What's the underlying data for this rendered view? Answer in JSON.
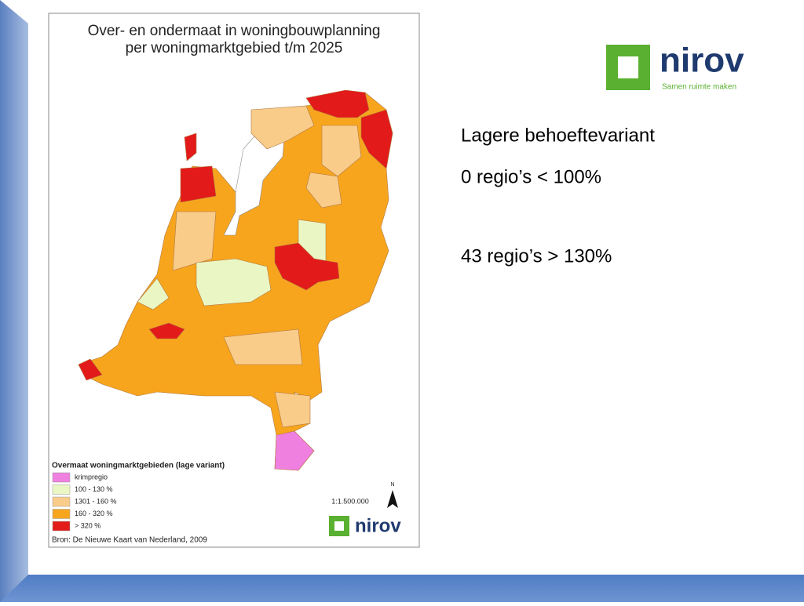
{
  "map": {
    "title": [
      "Over- en ondermaat in woningbouwplanning",
      "per woningmarktgebied t/m 2025"
    ],
    "legend": {
      "title": "Overmaat woningmarktgebieden (lage variant)",
      "items": [
        "krimpregio",
        "100 - 130 %",
        "1301 - 160 %",
        "160 - 320 %",
        "> 320 %"
      ]
    },
    "scale": "1:1.500.000",
    "north": "N",
    "logo": "nirov",
    "source": "Bron: De Nieuwe Kaart van Nederland, 2009"
  },
  "logo": {
    "name": "nirov",
    "tagline": "Samen ruimte maken"
  },
  "text": {
    "heading": "Lagere behoeftevariant",
    "lines": [
      "0 regio’s < 100%",
      "43 regio’s > 130%"
    ]
  }
}
